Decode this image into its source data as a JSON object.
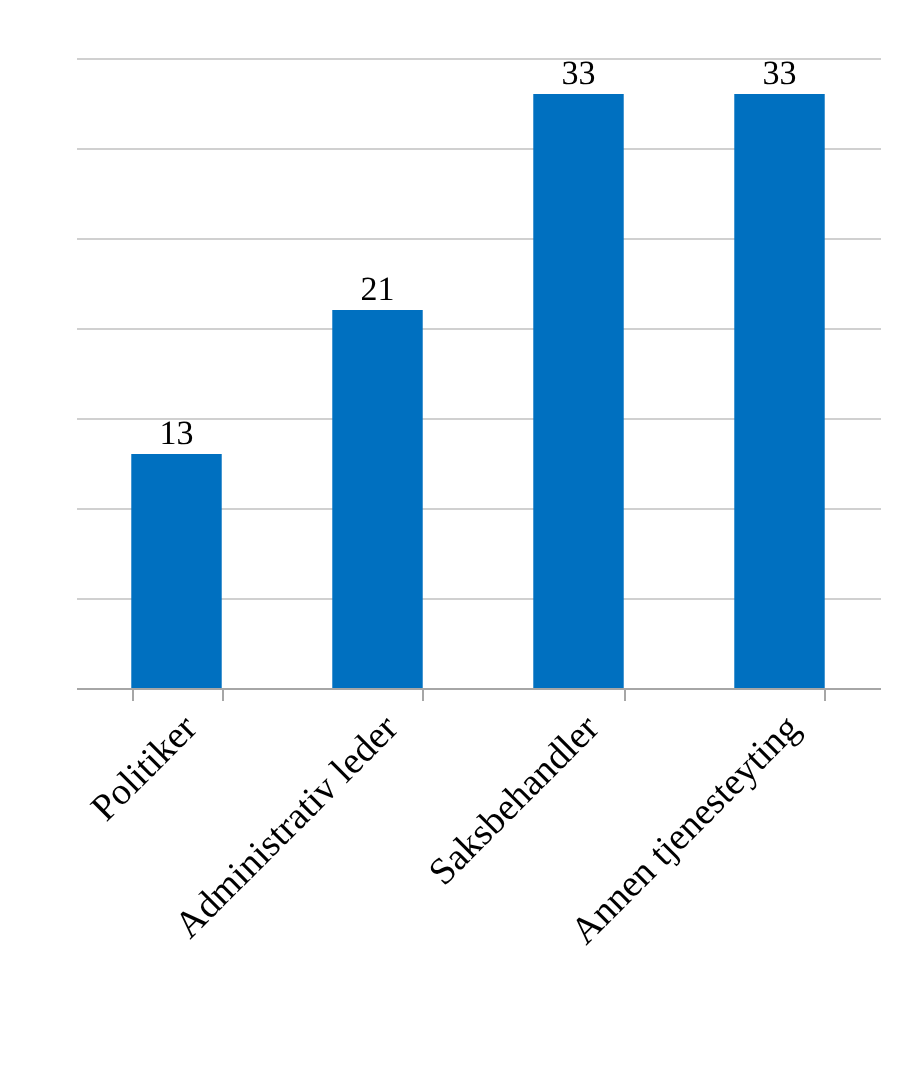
{
  "chart_data": {
    "type": "bar",
    "categories": [
      "Politiker",
      "Administrativ leder",
      "Saksbehandler",
      "Annen tjenesteyting"
    ],
    "values": [
      13,
      21,
      33,
      33
    ],
    "color": "#0070c0",
    "data_labels": true,
    "ylim": [
      0,
      35
    ],
    "yticks": [
      {
        "value": 0,
        "label": null
      },
      {
        "value": 5,
        "label": null
      },
      {
        "value": 10,
        "label": null
      },
      {
        "value": 15,
        "label": null
      },
      {
        "value": 20,
        "label": null
      },
      {
        "value": 25,
        "label": null
      },
      {
        "value": 30,
        "label": null
      },
      {
        "value": 35,
        "label": null
      }
    ],
    "grid": "y",
    "tick_labels": "x"
  }
}
